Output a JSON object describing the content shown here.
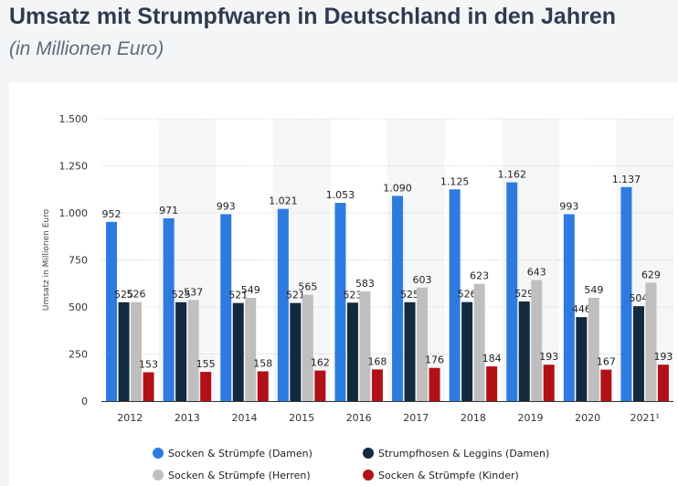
{
  "header": {
    "title": "Umsatz mit Strumpfwaren in Deutschland in den Jahren",
    "subtitle": "(in Millionen Euro)"
  },
  "chart_data": {
    "type": "bar",
    "categories": [
      "2012",
      "2013",
      "2014",
      "2015",
      "2016",
      "2017",
      "2018",
      "2019",
      "2020",
      "2021¹"
    ],
    "series": [
      {
        "name": "Socken & Strümpfe (Damen)",
        "color": "#2e7be0",
        "values": [
          952,
          971,
          993,
          1021,
          1053,
          1090,
          1125,
          1162,
          993,
          1137
        ],
        "labels": [
          "952",
          "971",
          "993",
          "1.021",
          "1.053",
          "1.090",
          "1.125",
          "1.162",
          "993",
          "1.137"
        ]
      },
      {
        "name": "Strumpfhosen & Leggins (Damen)",
        "color": "#132a3e",
        "values": [
          525,
          525,
          521,
          521,
          523,
          525,
          526,
          529,
          446,
          504
        ],
        "labels": [
          "525",
          "525",
          "521",
          "521",
          "523",
          "525",
          "526",
          "529",
          "446",
          "504"
        ]
      },
      {
        "name": "Socken & Strümpfe (Herren)",
        "color": "#bfbfbf",
        "values": [
          526,
          537,
          549,
          565,
          583,
          603,
          623,
          643,
          549,
          629
        ],
        "labels": [
          "526",
          "537",
          "549",
          "565",
          "583",
          "603",
          "623",
          "643",
          "549",
          "629"
        ]
      },
      {
        "name": "Socken & Strümpfe (Kinder)",
        "color": "#b11116",
        "values": [
          153,
          155,
          158,
          162,
          168,
          176,
          184,
          193,
          167,
          193
        ],
        "labels": [
          "153",
          "155",
          "158",
          "162",
          "168",
          "176",
          "184",
          "193",
          "167",
          "193"
        ]
      }
    ],
    "ylabel": "Umsatz in Millionen Euro",
    "ylim": [
      0,
      1500
    ],
    "yticks": [
      0,
      250,
      500,
      750,
      1000,
      1250,
      1500
    ],
    "ytick_labels": [
      "0",
      "250",
      "500",
      "750",
      "1.000",
      "1.250",
      "1.500"
    ],
    "grid": true,
    "legend_position": "bottom"
  }
}
